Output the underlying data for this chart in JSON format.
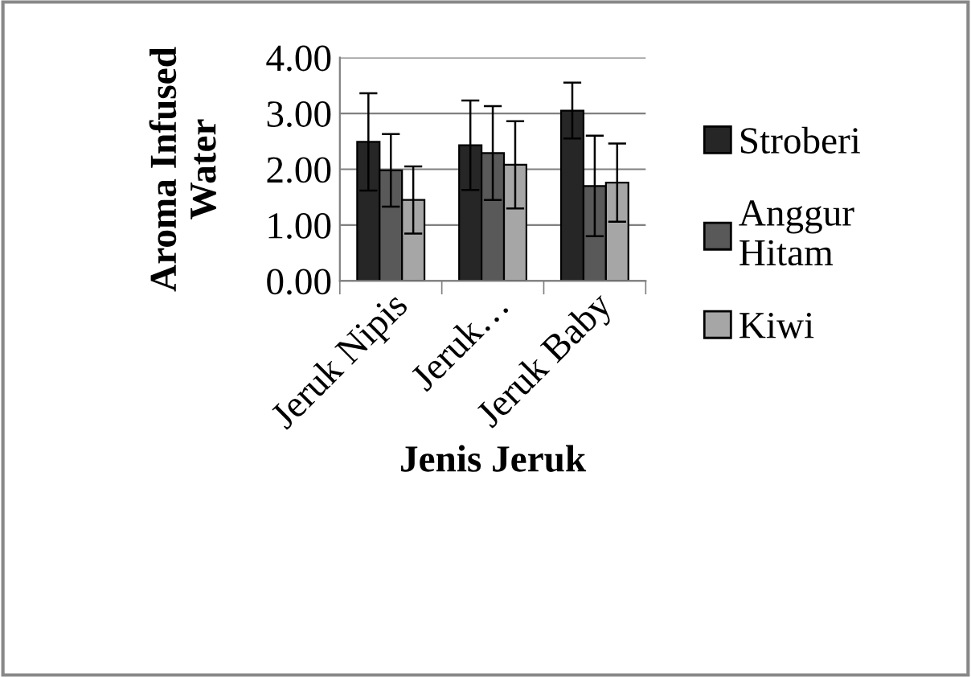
{
  "chart_data": {
    "type": "bar",
    "xlabel": "Jenis Jeruk",
    "ylabel": "Aroma Infused Water",
    "categories": [
      "Jeruk Nipis",
      "Jeruk…",
      "Jeruk Baby"
    ],
    "series": [
      {
        "name": "Stroberi",
        "color": "#262626",
        "values": [
          2.49,
          2.43,
          3.05
        ],
        "errors": [
          0.87,
          0.8,
          0.5
        ]
      },
      {
        "name": "Anggur Hitam",
        "color": "#595959",
        "values": [
          1.98,
          2.29,
          1.7
        ],
        "errors": [
          0.65,
          0.84,
          0.9
        ]
      },
      {
        "name": "Kiwi",
        "color": "#a6a6a6",
        "values": [
          1.45,
          2.08,
          1.76
        ],
        "errors": [
          0.6,
          0.78,
          0.7
        ]
      }
    ],
    "ylim": [
      0,
      4
    ],
    "yticks": [
      {
        "value": 0,
        "label": "0.00"
      },
      {
        "value": 1,
        "label": "1.00"
      },
      {
        "value": 2,
        "label": "2.00"
      },
      {
        "value": 3,
        "label": "3.00"
      },
      {
        "value": 4,
        "label": "4.00"
      }
    ],
    "grid": "y",
    "legend": "right"
  }
}
